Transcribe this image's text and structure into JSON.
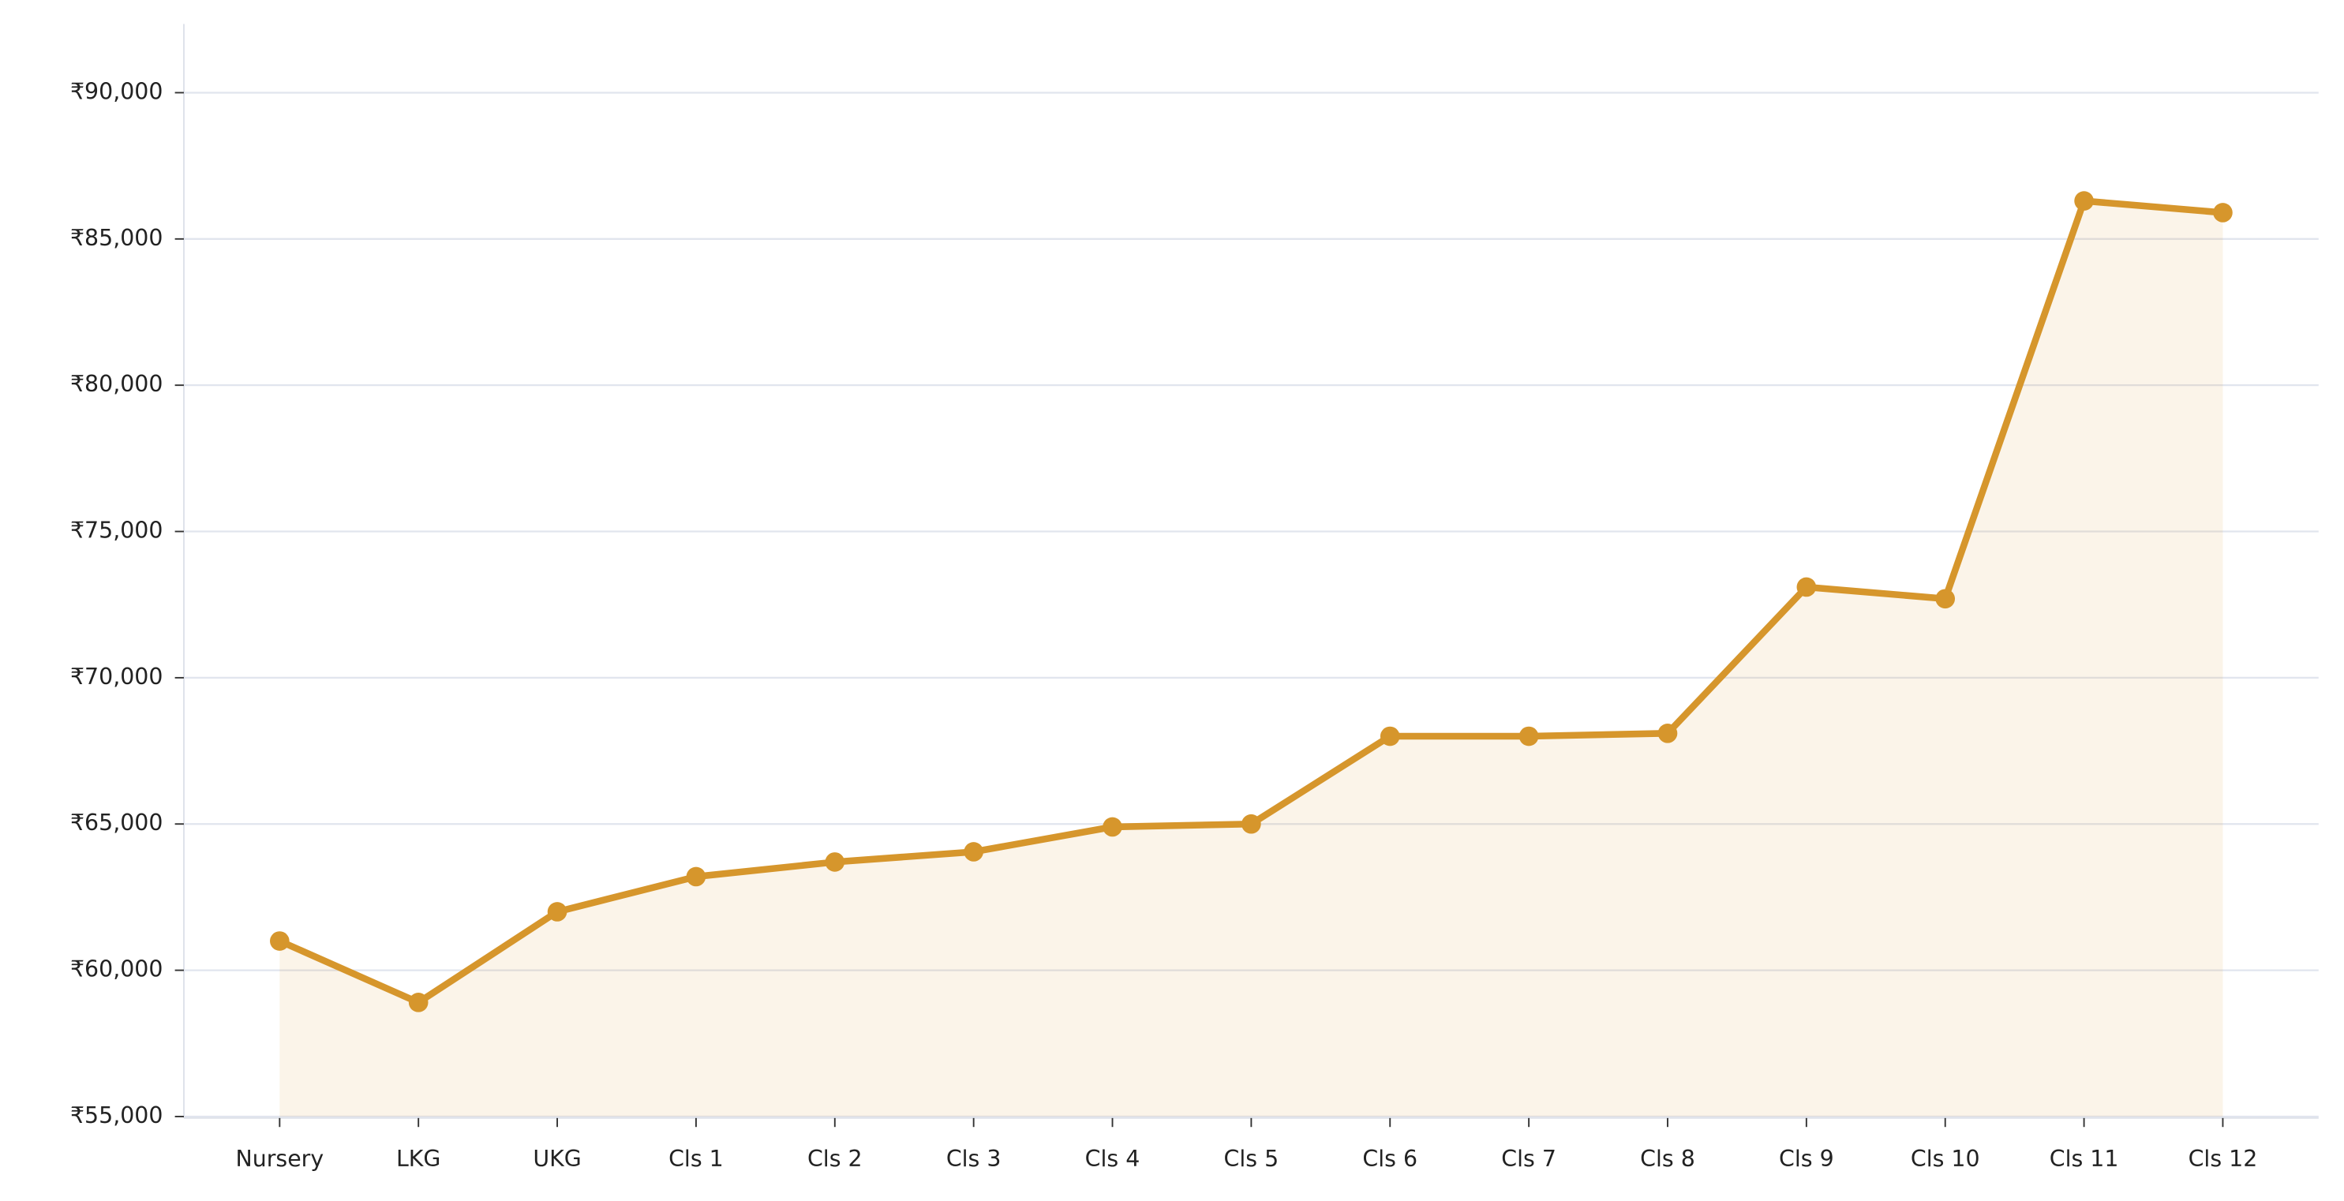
{
  "chart_data": {
    "type": "line",
    "categories": [
      "Nursery",
      "LKG",
      "UKG",
      "Cls 1",
      "Cls 2",
      "Cls 3",
      "Cls 4",
      "Cls 5",
      "Cls 6",
      "Cls 7",
      "Cls 8",
      "Cls 9",
      "Cls 10",
      "Cls 11",
      "Cls 12"
    ],
    "values": [
      61000,
      58900,
      62000,
      63200,
      63700,
      64050,
      64900,
      65000,
      68000,
      68000,
      68100,
      73100,
      72700,
      86300,
      85900
    ],
    "color": "#d6962c",
    "ylim": [
      55000,
      92350
    ],
    "yticks": [
      {
        "value": 55000,
        "label": "₹55,000"
      },
      {
        "value": 60000,
        "label": "₹60,000"
      },
      {
        "value": 65000,
        "label": "₹65,000"
      },
      {
        "value": 70000,
        "label": "₹70,000"
      },
      {
        "value": 75000,
        "label": "₹75,000"
      },
      {
        "value": 80000,
        "label": "₹80,000"
      },
      {
        "value": 85000,
        "label": "₹85,000"
      },
      {
        "value": 90000,
        "label": "₹90,000"
      }
    ],
    "grid": true,
    "area": true
  }
}
